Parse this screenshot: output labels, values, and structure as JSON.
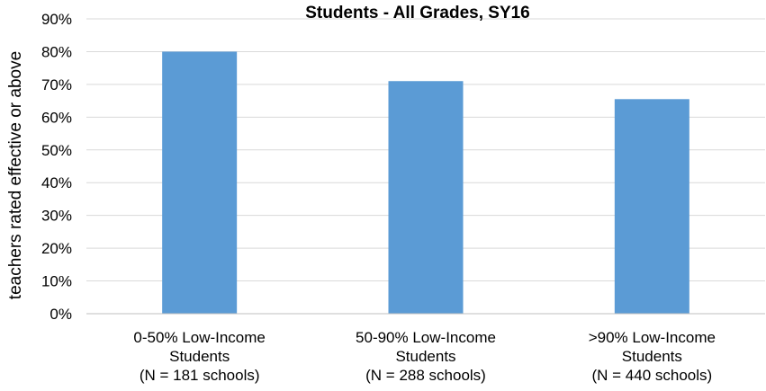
{
  "chart_data": {
    "type": "bar",
    "title": "Students - All Grades, SY16",
    "xlabel": "",
    "ylabel": "teachers rated effective or above",
    "categories": [
      [
        "0-50% Low-Income",
        "Students",
        "(N = 181 schools)"
      ],
      [
        "50-90% Low-Income",
        "Students",
        "(N = 288 schools)"
      ],
      [
        ">90% Low-Income",
        "Students",
        "(N = 440 schools)"
      ]
    ],
    "values": [
      0.8,
      0.71,
      0.655
    ],
    "ylim": [
      0,
      0.9
    ],
    "yticks": [
      "0%",
      "10%",
      "20%",
      "30%",
      "40%",
      "50%",
      "60%",
      "70%",
      "80%",
      "90%"
    ],
    "grid": true,
    "legend": "none",
    "colors": {
      "bar": "#5B9BD5",
      "grid": "#D9D9D9",
      "axis": "#BFBFBF"
    }
  }
}
